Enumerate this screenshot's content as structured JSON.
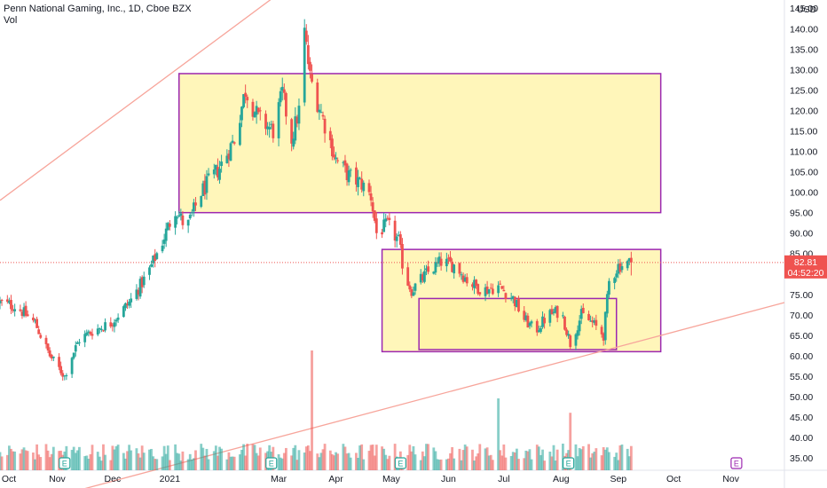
{
  "header": {
    "symbol_title": "Penn National Gaming, Inc., 1D, Cboe BZX",
    "volume_label": "Vol"
  },
  "price_axis": {
    "currency": "USD",
    "ticks": [
      "145.00",
      "140.00",
      "135.00",
      "130.00",
      "125.00",
      "120.00",
      "115.00",
      "110.00",
      "105.00",
      "100.00",
      "95.00",
      "90.00",
      "85.00",
      "80.00",
      "75.00",
      "70.00",
      "65.00",
      "60.00",
      "55.00",
      "50.00",
      "45.00",
      "40.00",
      "35.00"
    ],
    "last_price": "82.81",
    "countdown": "04:52:20"
  },
  "time_axis": {
    "ticks": [
      "Oct",
      "Nov",
      "Dec",
      "2021",
      "Mar",
      "Apr",
      "May",
      "Jun",
      "Jul",
      "Aug",
      "Sep",
      "Oct",
      "Nov"
    ]
  },
  "colors": {
    "up": "#26a69a",
    "down": "#ef5350",
    "box_fill": "#fff3a3",
    "box_stroke": "#9c27b0",
    "trendline": "#f7a59b",
    "price_label_bg": "#ef5350",
    "earnings_badge": "#26a69a",
    "future_event_badge": "#9c27b0"
  },
  "chart_data": {
    "type": "candlestick",
    "title": "Penn National Gaming, Inc., 1D, Cboe BZX",
    "ylim": [
      32,
      147
    ],
    "x_range": [
      "2020-10-01",
      "2021-11-30"
    ],
    "last_price": 82.81,
    "price_anchors": [
      [
        "2020-10-01",
        73
      ],
      [
        "2020-10-10",
        72
      ],
      [
        "2020-10-20",
        68
      ],
      [
        "2020-10-28",
        60
      ],
      [
        "2020-11-05",
        55
      ],
      [
        "2020-11-09",
        60
      ],
      [
        "2020-11-13",
        64
      ],
      [
        "2020-11-20",
        66
      ],
      [
        "2020-11-30",
        68
      ],
      [
        "2020-12-10",
        73
      ],
      [
        "2020-12-20",
        80
      ],
      [
        "2020-12-28",
        88
      ],
      [
        "2021-01-04",
        96
      ],
      [
        "2021-01-10",
        91
      ],
      [
        "2021-01-18",
        100
      ],
      [
        "2021-01-28",
        106
      ],
      [
        "2021-02-05",
        113
      ],
      [
        "2021-02-11",
        125
      ],
      [
        "2021-02-18",
        118
      ],
      [
        "2021-02-26",
        115
      ],
      [
        "2021-03-03",
        124
      ],
      [
        "2021-03-08",
        113
      ],
      [
        "2021-03-12",
        120
      ],
      [
        "2021-03-15",
        139
      ],
      [
        "2021-03-18",
        128
      ],
      [
        "2021-03-25",
        118
      ],
      [
        "2021-04-01",
        108
      ],
      [
        "2021-04-08",
        104
      ],
      [
        "2021-04-15",
        102
      ],
      [
        "2021-04-20",
        99
      ],
      [
        "2021-04-23",
        90
      ],
      [
        "2021-04-29",
        92
      ],
      [
        "2021-05-05",
        88
      ],
      [
        "2021-05-08",
        80
      ],
      [
        "2021-05-12",
        76
      ],
      [
        "2021-05-20",
        80
      ],
      [
        "2021-05-28",
        83
      ],
      [
        "2021-06-05",
        82
      ],
      [
        "2021-06-12",
        78
      ],
      [
        "2021-06-20",
        76
      ],
      [
        "2021-06-28",
        77
      ],
      [
        "2021-07-06",
        74
      ],
      [
        "2021-07-12",
        69
      ],
      [
        "2021-07-18",
        66
      ],
      [
        "2021-07-25",
        70
      ],
      [
        "2021-08-01",
        71
      ],
      [
        "2021-08-06",
        63
      ],
      [
        "2021-08-12",
        70
      ],
      [
        "2021-08-18",
        68
      ],
      [
        "2021-08-24",
        65
      ],
      [
        "2021-08-27",
        78
      ],
      [
        "2021-09-01",
        82
      ],
      [
        "2021-09-08",
        82.81
      ]
    ],
    "volume_spikes": [
      [
        "2021-03-19",
        15
      ],
      [
        "2021-06-28",
        9
      ],
      [
        "2021-08-06",
        7.2
      ]
    ],
    "earnings_events": [
      "2020-11-05",
      "2021-02-25",
      "2021-05-06",
      "2021-08-05"
    ],
    "future_events": [
      "2021-11-04"
    ],
    "boxes": [
      {
        "start": "2021-01-06",
        "end": "2021-09-24",
        "top": 129,
        "bottom": 95
      },
      {
        "start": "2021-04-26",
        "end": "2021-09-24",
        "top": 86,
        "bottom": 61
      },
      {
        "start": "2021-05-16",
        "end": "2021-08-31",
        "top": 74,
        "bottom": 61.5
      }
    ],
    "trendlines": [
      {
        "x1": "2020-10-01",
        "y1": 98,
        "x2": "2021-05-10",
        "y2": 172
      },
      {
        "x1": "2020-10-01",
        "y1": 22,
        "x2": "2021-11-30",
        "y2": 73
      }
    ]
  }
}
